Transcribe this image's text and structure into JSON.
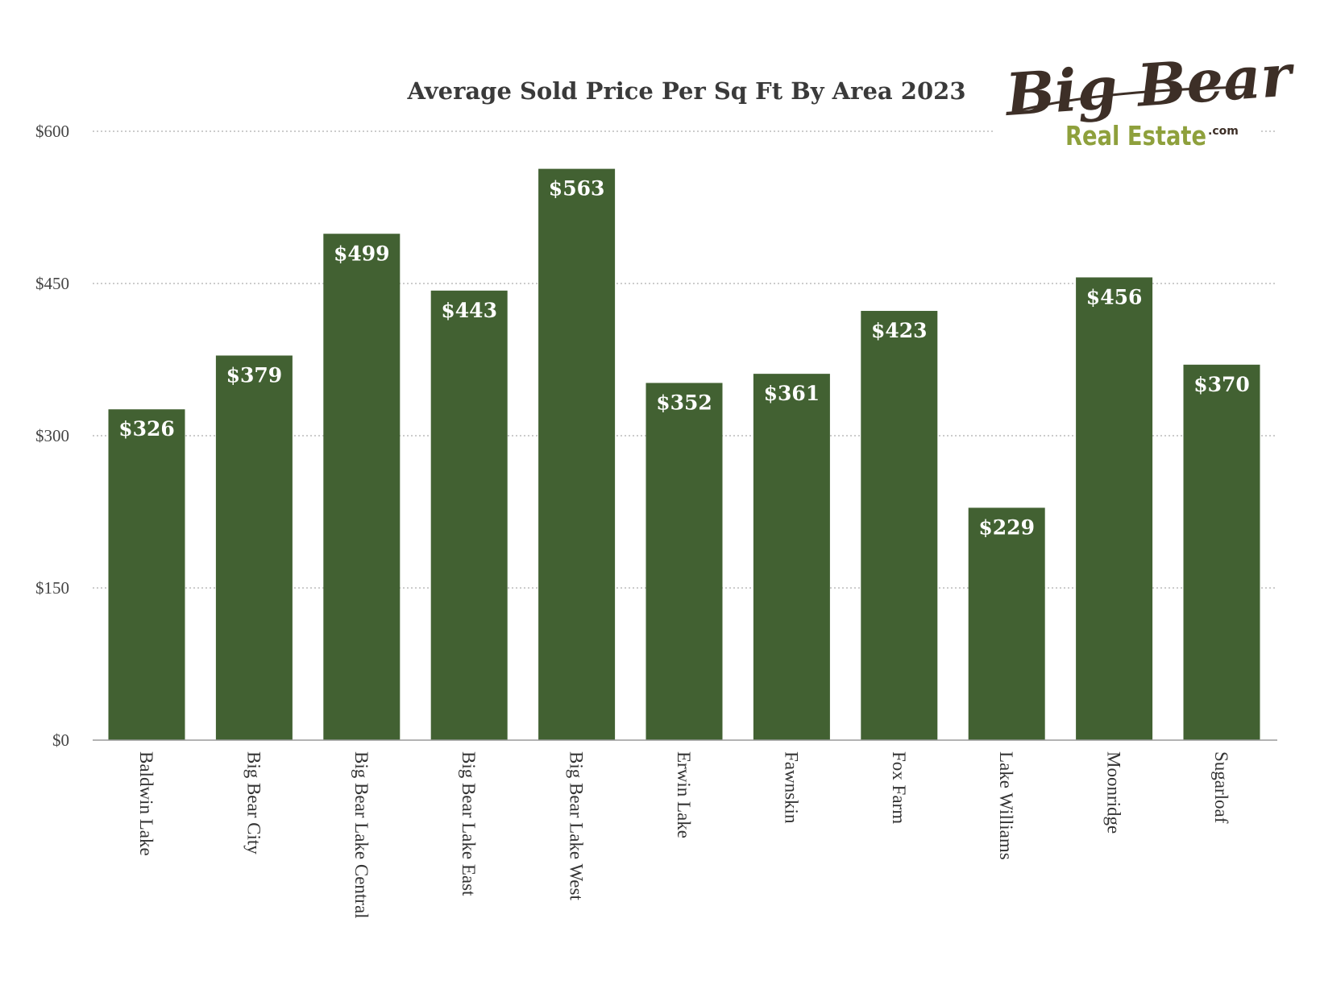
{
  "chart_data": {
    "type": "bar",
    "title": "Average Sold Price Per Sq Ft By Area 2023",
    "xlabel": "",
    "ylabel": "",
    "categories": [
      "Baldwin Lake",
      "Big Bear City",
      "Big Bear Lake Central",
      "Big Bear Lake East",
      "Big Bear Lake West",
      "Erwin Lake",
      "Fawnskin",
      "Fox Farm",
      "Lake Williams",
      "Moonridge",
      "Sugarloaf"
    ],
    "values": [
      326,
      379,
      499,
      443,
      563,
      352,
      361,
      423,
      229,
      456,
      370
    ],
    "data_labels": [
      "$326",
      "$379",
      "$499",
      "$443",
      "$563",
      "$352",
      "$361",
      "$423",
      "$229",
      "$456",
      "$370"
    ],
    "ylim": [
      0,
      600
    ],
    "yticks": [
      0,
      150,
      300,
      450,
      600
    ],
    "ytick_labels": [
      "$0",
      "$150",
      "$300",
      "$450",
      "$600"
    ],
    "grid": true,
    "bar_color": "#426132",
    "legend": "none"
  },
  "logo": {
    "script_text": "Big Bear",
    "sub_text": "Real Estate",
    "suffix": ".com",
    "primary_color": "#3d2f27",
    "accent_color": "#8ea03c"
  }
}
